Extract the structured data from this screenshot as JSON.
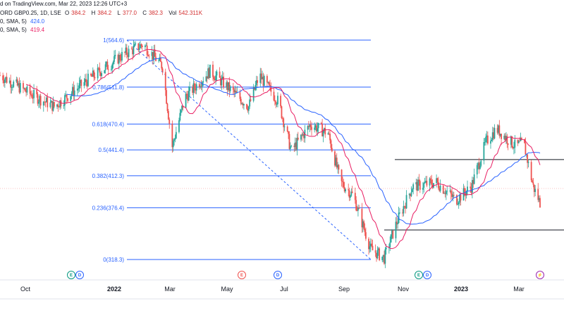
{
  "header": {
    "source_text": "d on TradingView.com, Mar 22, 2023 12:26 UTC+3",
    "symbol_text": "ORD GBP0.25, 1D, LSE",
    "ohlc": [
      {
        "label": "O",
        "value": "384.2"
      },
      {
        "label": "H",
        "value": "384.2"
      },
      {
        "label": "L",
        "value": "377.0"
      },
      {
        "label": "C",
        "value": "382.3"
      },
      {
        "label": "Vol",
        "value": "542.311K"
      }
    ],
    "sma_slow": {
      "label": "0, SMA, 5)",
      "value": "424.0"
    },
    "sma_fast": {
      "label": "0, SMA, 5)",
      "value": "419.4"
    }
  },
  "colors": {
    "up": "#26a69a",
    "down": "#ef5350",
    "fib": "#2962ff",
    "sma_slow": "#2962ff",
    "sma_fast": "#e91e63",
    "sr_line": "#131722",
    "earnings": "#089981",
    "dividend": "#2962ff",
    "split_event": "#ef5350",
    "flash": "#9c27b0"
  },
  "fib_levels": [
    {
      "ratio": 1,
      "label": "1(564.6)",
      "price": 564.6
    },
    {
      "ratio": 0.786,
      "label": "0.786(511.8)",
      "price": 511.8
    },
    {
      "ratio": 0.618,
      "label": "0.618(470.4)",
      "price": 470.4
    },
    {
      "ratio": 0.5,
      "label": "0.5(441.4)",
      "price": 441.4
    },
    {
      "ratio": 0.382,
      "label": "0.382(412.3)",
      "price": 412.3
    },
    {
      "ratio": 0.236,
      "label": "0.236(376.4)",
      "price": 376.4
    },
    {
      "ratio": 0,
      "label": "0(318.3)",
      "price": 318.3
    }
  ],
  "x_axis": [
    {
      "label": "Oct",
      "bold": false
    },
    {
      "label": "2022",
      "bold": true
    },
    {
      "label": "Mar",
      "bold": false
    },
    {
      "label": "May",
      "bold": false
    },
    {
      "label": "Jul",
      "bold": false
    },
    {
      "label": "Sep",
      "bold": false
    },
    {
      "label": "Nov",
      "bold": false
    },
    {
      "label": "2023",
      "bold": true
    },
    {
      "label": "Mar",
      "bold": false
    }
  ],
  "events": [
    {
      "type": "E",
      "kind": "earnings"
    },
    {
      "type": "D",
      "kind": "dividend"
    },
    {
      "type": "E",
      "kind": "split_event"
    },
    {
      "type": "D",
      "kind": "dividend"
    },
    {
      "type": "E",
      "kind": "earnings"
    },
    {
      "type": "D",
      "kind": "dividend"
    },
    {
      "type": "⚡",
      "kind": "flash"
    }
  ],
  "chart_data": {
    "type": "candlestick",
    "title": "",
    "price_anchors": [
      {
        "date": "2021-09-10",
        "price": 525
      },
      {
        "date": "2021-10-10",
        "price": 505
      },
      {
        "date": "2021-11-05",
        "price": 490
      },
      {
        "date": "2021-12-10",
        "price": 520
      },
      {
        "date": "2022-01-15",
        "price": 548
      },
      {
        "date": "2022-02-05",
        "price": 560
      },
      {
        "date": "2022-02-25",
        "price": 535
      },
      {
        "date": "2022-03-07",
        "price": 445
      },
      {
        "date": "2022-03-20",
        "price": 500
      },
      {
        "date": "2022-04-15",
        "price": 530
      },
      {
        "date": "2022-05-10",
        "price": 505
      },
      {
        "date": "2022-05-25",
        "price": 490
      },
      {
        "date": "2022-06-05",
        "price": 525
      },
      {
        "date": "2022-06-25",
        "price": 495
      },
      {
        "date": "2022-07-08",
        "price": 440
      },
      {
        "date": "2022-07-28",
        "price": 470
      },
      {
        "date": "2022-08-15",
        "price": 460
      },
      {
        "date": "2022-08-28",
        "price": 405
      },
      {
        "date": "2022-09-10",
        "price": 390
      },
      {
        "date": "2022-09-28",
        "price": 330
      },
      {
        "date": "2022-10-12",
        "price": 320
      },
      {
        "date": "2022-10-25",
        "price": 360
      },
      {
        "date": "2022-11-10",
        "price": 400
      },
      {
        "date": "2022-12-05",
        "price": 405
      },
      {
        "date": "2022-12-25",
        "price": 385
      },
      {
        "date": "2023-01-10",
        "price": 400
      },
      {
        "date": "2023-01-25",
        "price": 450
      },
      {
        "date": "2023-02-05",
        "price": 465
      },
      {
        "date": "2023-02-25",
        "price": 445
      },
      {
        "date": "2023-03-05",
        "price": 450
      },
      {
        "date": "2023-03-15",
        "price": 400
      },
      {
        "date": "2023-03-22",
        "price": 382
      }
    ],
    "sr_levels": [
      {
        "price": 440
      },
      {
        "price": 368
      }
    ],
    "fib_range": [
      318.3,
      564.6
    ],
    "ylim": [
      300,
      600
    ]
  }
}
